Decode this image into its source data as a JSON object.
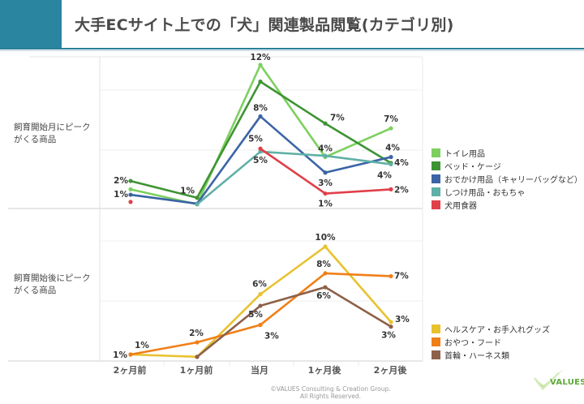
{
  "header": {
    "title": "大手ECサイト上での「犬」関連製品閲覧(カテゴリ別)"
  },
  "row_labels": [
    {
      "line1": "飼育開始月にピーク",
      "line2": "がくる商品"
    },
    {
      "line1": "飼育開始後にピーク",
      "line2": "がくる商品"
    }
  ],
  "footer": {
    "copyright_line1": "©VALUES Consulting & Creation Group.",
    "copyright_line2": "All Rights Reserved.",
    "logo_text": "VALUES"
  },
  "chart_data": [
    {
      "type": "line",
      "title": "飼育開始月にピークがくる商品",
      "categories": [
        "2ヶ月前",
        "1ヶ月前",
        "当月",
        "1ヶ月後",
        "2ヶ月後"
      ],
      "xlabel": "",
      "ylabel": "",
      "ylim": [
        0,
        12.5
      ],
      "grid": true,
      "legend": "right",
      "series": [
        {
          "name": "トイレ用品",
          "color": "#7dd05f",
          "values": [
            1.6,
            0.35,
            12.0,
            4.3,
            6.7
          ],
          "labels": [
            "",
            "",
            "12%",
            "4%",
            "7%"
          ]
        },
        {
          "name": "ベッド・ケージ",
          "color": "#3e9433",
          "values": [
            2.3,
            0.9,
            10.6,
            7.1,
            3.8
          ],
          "labels": [
            "2%",
            "1%",
            "",
            "7%",
            "4%"
          ]
        },
        {
          "name": "おでかけ用品（キャリーバッグなど）",
          "color": "#3b64a5",
          "values": [
            1.15,
            0.4,
            7.7,
            3.0,
            4.3
          ],
          "labels": [
            "1%",
            "",
            "8%",
            "3%",
            "4%"
          ]
        },
        {
          "name": "しつけ用品・おもちゃ",
          "color": "#5fb0a6",
          "values": [
            null,
            0.35,
            4.75,
            4.4,
            3.7
          ],
          "labels": [
            "",
            "",
            "5%",
            "",
            "4%"
          ]
        },
        {
          "name": "犬用食器",
          "color": "#e0404a",
          "values": [
            0.55,
            null,
            5.0,
            1.25,
            1.6
          ],
          "labels": [
            "",
            "",
            "5%",
            "1%",
            "2%"
          ]
        }
      ]
    },
    {
      "type": "line",
      "title": "飼育開始後にピークがくる商品",
      "categories": [
        "2ヶ月前",
        "1ヶ月前",
        "当月",
        "1ヶ月後",
        "2ヶ月後"
      ],
      "xlabel": "",
      "ylabel": "",
      "ylim": [
        0,
        10.5
      ],
      "grid": true,
      "legend": "right",
      "series": [
        {
          "name": "ヘルスケア・お手入れグッズ",
          "color": "#e8c22e",
          "values": [
            0.7,
            0.5,
            5.9,
            10.0,
            3.5
          ],
          "labels": [
            "1%",
            "",
            "6%",
            "10%",
            "3%"
          ]
        },
        {
          "name": "おやつ・フード",
          "color": "#f07f17",
          "values": [
            0.7,
            1.75,
            3.25,
            7.7,
            7.45
          ],
          "labels": [
            "1%",
            "2%",
            "3%",
            "8%",
            "7%"
          ]
        },
        {
          "name": "首輪・ハーネス類",
          "color": "#8d6149",
          "values": [
            null,
            0.5,
            4.9,
            6.5,
            3.1
          ],
          "labels": [
            "",
            "",
            "5%",
            "6%",
            "3%"
          ]
        }
      ]
    }
  ]
}
